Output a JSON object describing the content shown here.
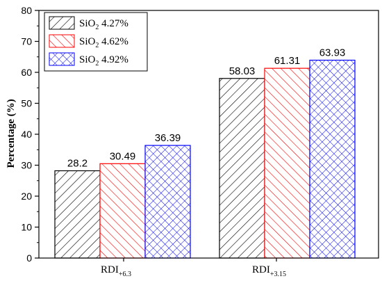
{
  "chart_data": {
    "type": "bar",
    "categories": [
      {
        "main": "RDI",
        "sub": "+6.3"
      },
      {
        "main": "RDI",
        "sub": "+3.15"
      }
    ],
    "series": [
      {
        "name": {
          "main": "SiO",
          "sub": "2",
          "rest": " 4.27%"
        },
        "values": [
          28.2,
          58.03
        ],
        "labels": [
          "28.2",
          "58.03"
        ],
        "color": "#000000",
        "pattern": "diagonal-right"
      },
      {
        "name": {
          "main": "SiO",
          "sub": "2",
          "rest": " 4.62%"
        },
        "values": [
          30.49,
          61.31
        ],
        "labels": [
          "30.49",
          "61.31"
        ],
        "color": "#ff0000",
        "pattern": "diagonal-left"
      },
      {
        "name": {
          "main": "SiO",
          "sub": "2",
          "rest": " 4.92%"
        },
        "values": [
          36.39,
          63.93
        ],
        "labels": [
          "36.39",
          "63.93"
        ],
        "color": "#0000ff",
        "pattern": "crosshatch"
      }
    ],
    "ylabel": "Percentage (%)",
    "ylim": [
      0,
      80
    ],
    "yticks": [
      "0",
      "10",
      "20",
      "30",
      "40",
      "50",
      "60",
      "70",
      "80"
    ],
    "grid": false,
    "legend_position": "top-left"
  }
}
